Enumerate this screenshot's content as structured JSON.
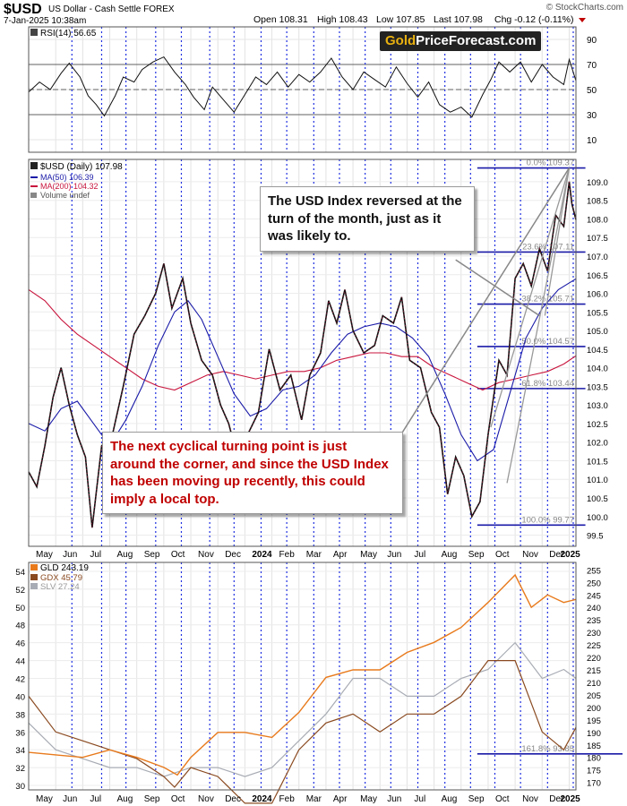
{
  "chart_data": {
    "type": "line",
    "header": {
      "symbol": "$USD",
      "name": "US Dollar - Cash Settle FOREX",
      "date": "7-Jan-2025 10:38am",
      "open": "Open 108.31",
      "high": "High 108.43",
      "low": "Low 107.85",
      "last": "Last 107.98",
      "chg": "Chg -0.12 (-0.11%)",
      "watermark": "© StockCharts.com"
    },
    "logo": {
      "part1": "Gold",
      "part2": "PriceForecast.com"
    },
    "x_axis": {
      "labels": [
        "May",
        "Jun",
        "Jul",
        "Aug",
        "Sep",
        "Oct",
        "Nov",
        "Dec",
        "2024",
        "Feb",
        "Mar",
        "Apr",
        "May",
        "Jun",
        "Jul",
        "Aug",
        "Sep",
        "Oct",
        "Nov",
        "Dec",
        "2025"
      ],
      "months": [
        0,
        1,
        2,
        3,
        4,
        5,
        6,
        7,
        8,
        9,
        10,
        11,
        12,
        13,
        14,
        15,
        16,
        17,
        18,
        19,
        20
      ],
      "last_month": 20.25
    },
    "cycle_lines": [
      1.6,
      2.7,
      3.6,
      4.7,
      5.65,
      6.7,
      7.6,
      8.6,
      9.55,
      10.55,
      11.5,
      12.45,
      13.4,
      14.4,
      15.4,
      16.35,
      17.25,
      18.2,
      19.2,
      20.15
    ],
    "rsi": {
      "legend": "RSI(14) 56.65",
      "ylim": [
        0,
        100
      ],
      "ticks": [
        10,
        30,
        50,
        70,
        90
      ],
      "ref_lines": [
        30,
        50,
        70
      ],
      "points": [
        [
          0,
          48
        ],
        [
          0.4,
          56
        ],
        [
          0.8,
          50
        ],
        [
          1.2,
          63
        ],
        [
          1.5,
          71
        ],
        [
          1.9,
          60
        ],
        [
          2.2,
          45
        ],
        [
          2.5,
          38
        ],
        [
          2.8,
          29
        ],
        [
          3.2,
          45
        ],
        [
          3.5,
          60
        ],
        [
          3.9,
          56
        ],
        [
          4.2,
          66
        ],
        [
          4.6,
          72
        ],
        [
          5.0,
          76
        ],
        [
          5.4,
          64
        ],
        [
          5.8,
          54
        ],
        [
          6.1,
          44
        ],
        [
          6.5,
          34
        ],
        [
          6.8,
          52
        ],
        [
          7.2,
          42
        ],
        [
          7.6,
          32
        ],
        [
          8.0,
          46
        ],
        [
          8.4,
          60
        ],
        [
          8.8,
          54
        ],
        [
          9.2,
          64
        ],
        [
          9.6,
          52
        ],
        [
          10.0,
          62
        ],
        [
          10.4,
          56
        ],
        [
          10.8,
          64
        ],
        [
          11.2,
          75
        ],
        [
          11.6,
          60
        ],
        [
          12.0,
          50
        ],
        [
          12.4,
          64
        ],
        [
          12.8,
          58
        ],
        [
          13.2,
          52
        ],
        [
          13.6,
          68
        ],
        [
          14.0,
          55
        ],
        [
          14.4,
          44
        ],
        [
          14.8,
          56
        ],
        [
          15.2,
          38
        ],
        [
          15.6,
          32
        ],
        [
          16.0,
          36
        ],
        [
          16.4,
          28
        ],
        [
          16.8,
          46
        ],
        [
          17.1,
          58
        ],
        [
          17.4,
          72
        ],
        [
          17.8,
          64
        ],
        [
          18.2,
          72
        ],
        [
          18.6,
          56
        ],
        [
          19.0,
          70
        ],
        [
          19.4,
          60
        ],
        [
          19.8,
          54
        ],
        [
          20.0,
          74
        ],
        [
          20.25,
          57
        ]
      ]
    },
    "usd": {
      "legend": "$USD (Daily) 107.98",
      "ma50_legend": "MA(50) 106.39",
      "ma200_legend": "MA(200) 104.32",
      "volume_legend": "Volume undef",
      "ylim": [
        99.2,
        109.6
      ],
      "ticks": [
        99.5,
        100.0,
        100.5,
        101.0,
        101.5,
        102.0,
        102.5,
        103.0,
        103.5,
        104.0,
        104.5,
        105.0,
        105.5,
        106.0,
        106.5,
        107.0,
        107.5,
        108.0,
        108.5,
        109.0
      ],
      "price": [
        [
          0,
          101.2
        ],
        [
          0.3,
          100.8
        ],
        [
          0.6,
          101.9
        ],
        [
          0.9,
          103.2
        ],
        [
          1.2,
          104.0
        ],
        [
          1.5,
          103.0
        ],
        [
          1.8,
          102.2
        ],
        [
          2.1,
          101.6
        ],
        [
          2.35,
          99.7
        ],
        [
          2.7,
          101.9
        ],
        [
          3.1,
          102.2
        ],
        [
          3.5,
          103.5
        ],
        [
          3.9,
          104.9
        ],
        [
          4.3,
          105.4
        ],
        [
          4.7,
          106.0
        ],
        [
          5.0,
          106.8
        ],
        [
          5.3,
          105.6
        ],
        [
          5.7,
          106.4
        ],
        [
          6.0,
          105.2
        ],
        [
          6.4,
          104.2
        ],
        [
          6.8,
          103.8
        ],
        [
          7.1,
          103.0
        ],
        [
          7.4,
          102.5
        ],
        [
          7.8,
          101.4
        ],
        [
          8.1,
          102.2
        ],
        [
          8.5,
          102.8
        ],
        [
          8.9,
          104.5
        ],
        [
          9.3,
          103.4
        ],
        [
          9.7,
          103.8
        ],
        [
          10.1,
          102.6
        ],
        [
          10.4,
          103.8
        ],
        [
          10.8,
          104.4
        ],
        [
          11.1,
          105.8
        ],
        [
          11.4,
          105.2
        ],
        [
          11.7,
          106.1
        ],
        [
          12.0,
          105.0
        ],
        [
          12.4,
          104.4
        ],
        [
          12.8,
          104.6
        ],
        [
          13.1,
          105.4
        ],
        [
          13.5,
          105.2
        ],
        [
          13.8,
          105.9
        ],
        [
          14.1,
          104.2
        ],
        [
          14.5,
          104.0
        ],
        [
          14.9,
          102.8
        ],
        [
          15.2,
          102.4
        ],
        [
          15.5,
          100.6
        ],
        [
          15.8,
          101.6
        ],
        [
          16.1,
          101.1
        ],
        [
          16.4,
          100.0
        ],
        [
          16.7,
          100.4
        ],
        [
          17.0,
          102.2
        ],
        [
          17.4,
          104.2
        ],
        [
          17.7,
          103.8
        ],
        [
          18.0,
          106.4
        ],
        [
          18.3,
          106.8
        ],
        [
          18.6,
          106.2
        ],
        [
          18.9,
          107.2
        ],
        [
          19.2,
          106.6
        ],
        [
          19.5,
          108.1
        ],
        [
          19.8,
          107.8
        ],
        [
          20.0,
          109.0
        ],
        [
          20.1,
          108.4
        ],
        [
          20.25,
          107.98
        ]
      ],
      "ma50": [
        [
          0,
          102.5
        ],
        [
          0.6,
          102.3
        ],
        [
          1.2,
          102.9
        ],
        [
          1.8,
          103.1
        ],
        [
          2.4,
          102.5
        ],
        [
          3.0,
          101.9
        ],
        [
          3.6,
          102.6
        ],
        [
          4.2,
          103.5
        ],
        [
          4.8,
          104.6
        ],
        [
          5.4,
          105.5
        ],
        [
          5.9,
          105.8
        ],
        [
          6.4,
          105.3
        ],
        [
          7.0,
          104.3
        ],
        [
          7.6,
          103.3
        ],
        [
          8.2,
          102.7
        ],
        [
          8.8,
          102.9
        ],
        [
          9.4,
          103.4
        ],
        [
          10.0,
          103.5
        ],
        [
          10.6,
          103.8
        ],
        [
          11.2,
          104.4
        ],
        [
          11.8,
          104.9
        ],
        [
          12.4,
          105.1
        ],
        [
          13.0,
          105.2
        ],
        [
          13.6,
          105.1
        ],
        [
          14.2,
          104.8
        ],
        [
          14.8,
          104.3
        ],
        [
          15.4,
          103.3
        ],
        [
          16.0,
          102.2
        ],
        [
          16.6,
          101.5
        ],
        [
          17.2,
          101.8
        ],
        [
          17.8,
          103.3
        ],
        [
          18.4,
          104.8
        ],
        [
          19.0,
          105.6
        ],
        [
          19.6,
          106.1
        ],
        [
          20.25,
          106.39
        ]
      ],
      "ma200": [
        [
          0,
          106.1
        ],
        [
          0.6,
          105.8
        ],
        [
          1.2,
          105.3
        ],
        [
          1.8,
          104.9
        ],
        [
          2.4,
          104.6
        ],
        [
          3.0,
          104.3
        ],
        [
          3.6,
          104.0
        ],
        [
          4.2,
          103.7
        ],
        [
          4.8,
          103.5
        ],
        [
          5.4,
          103.4
        ],
        [
          6.0,
          103.6
        ],
        [
          6.6,
          103.8
        ],
        [
          7.2,
          103.9
        ],
        [
          7.8,
          103.8
        ],
        [
          8.4,
          103.7
        ],
        [
          9.0,
          103.8
        ],
        [
          9.6,
          103.9
        ],
        [
          10.2,
          103.9
        ],
        [
          10.8,
          104.0
        ],
        [
          11.4,
          104.2
        ],
        [
          12.0,
          104.3
        ],
        [
          12.6,
          104.4
        ],
        [
          13.2,
          104.4
        ],
        [
          13.8,
          104.3
        ],
        [
          14.4,
          104.3
        ],
        [
          15.0,
          104.0
        ],
        [
          15.6,
          103.8
        ],
        [
          16.2,
          103.6
        ],
        [
          16.8,
          103.4
        ],
        [
          17.4,
          103.6
        ],
        [
          18.0,
          103.7
        ],
        [
          18.6,
          103.8
        ],
        [
          19.2,
          103.9
        ],
        [
          19.8,
          104.1
        ],
        [
          20.25,
          104.32
        ]
      ],
      "fib": [
        {
          "label": "0.0% 109.37",
          "value": 109.37
        },
        {
          "label": "23.6% 107.11",
          "value": 107.11
        },
        {
          "label": "38.2% 105.71",
          "value": 105.71
        },
        {
          "label": "50.0% 104.57",
          "value": 104.57
        },
        {
          "label": "61.8% 103.44",
          "value": 103.44
        },
        {
          "label": "100.0% 99.77",
          "value": 99.77
        }
      ],
      "fib_start": 16.6,
      "fib_end": 20.6,
      "fan_origin": [
        20.0,
        109.37
      ],
      "fan_targets": [
        [
          17.1,
          102.4
        ],
        [
          17.7,
          100.9
        ],
        [
          19.1,
          105.4
        ]
      ],
      "callout_line1": [
        [
          15.8,
          106.9
        ],
        [
          18.9,
          105.4
        ]
      ],
      "callout_line2": [
        [
          13.6,
          102.0
        ],
        [
          20.0,
          109.37
        ]
      ]
    },
    "metals": {
      "gld_legend": "GLD 243.19",
      "gdx_legend": "GDX 45.79",
      "slv_legend": "SLV 27.24",
      "left_ylim": [
        29.5,
        55
      ],
      "left_ticks": [
        30,
        32,
        34,
        36,
        38,
        40,
        42,
        44,
        46,
        48,
        50,
        52,
        54
      ],
      "right_ylim": [
        167,
        258
      ],
      "right_ticks": [
        170,
        175,
        180,
        185,
        190,
        195,
        200,
        205,
        210,
        215,
        220,
        225,
        230,
        235,
        240,
        245,
        250,
        255
      ],
      "gld": [
        [
          0,
          182
        ],
        [
          1,
          181
        ],
        [
          2,
          180
        ],
        [
          3,
          183
        ],
        [
          4,
          180
        ],
        [
          5,
          176
        ],
        [
          5.5,
          173
        ],
        [
          6,
          180
        ],
        [
          7,
          190
        ],
        [
          8,
          190
        ],
        [
          9,
          188
        ],
        [
          10,
          198
        ],
        [
          11,
          212
        ],
        [
          12,
          215
        ],
        [
          13,
          215
        ],
        [
          14,
          222
        ],
        [
          15,
          226
        ],
        [
          16,
          232
        ],
        [
          17,
          242
        ],
        [
          18,
          253
        ],
        [
          18.6,
          240
        ],
        [
          19.2,
          245
        ],
        [
          19.8,
          242
        ],
        [
          20.25,
          243.19
        ]
      ],
      "gdx": [
        [
          0,
          40
        ],
        [
          1,
          36
        ],
        [
          2,
          35
        ],
        [
          3,
          34
        ],
        [
          4,
          33
        ],
        [
          5,
          31
        ],
        [
          5.4,
          29.8
        ],
        [
          6,
          32
        ],
        [
          7,
          31
        ],
        [
          8,
          28
        ],
        [
          9,
          28
        ],
        [
          10,
          34
        ],
        [
          11,
          37
        ],
        [
          12,
          38
        ],
        [
          13,
          36
        ],
        [
          14,
          38
        ],
        [
          15,
          38
        ],
        [
          16,
          40
        ],
        [
          17,
          44
        ],
        [
          18,
          44
        ],
        [
          19,
          36
        ],
        [
          19.8,
          34
        ],
        [
          20.25,
          36.5
        ]
      ],
      "slv": [
        [
          0,
          37
        ],
        [
          1,
          34
        ],
        [
          2,
          33
        ],
        [
          3,
          32
        ],
        [
          4,
          32
        ],
        [
          5,
          31
        ],
        [
          6,
          32
        ],
        [
          7,
          32
        ],
        [
          8,
          31
        ],
        [
          9,
          32
        ],
        [
          10,
          35
        ],
        [
          11,
          38
        ],
        [
          12,
          42
        ],
        [
          13,
          42
        ],
        [
          14,
          40
        ],
        [
          15,
          40
        ],
        [
          16,
          42
        ],
        [
          17,
          43
        ],
        [
          18,
          46
        ],
        [
          19,
          42
        ],
        [
          19.8,
          43
        ],
        [
          20.25,
          42
        ]
      ],
      "fib_label": "161.8% 93.85",
      "fib_value": 181.4
    }
  }
}
